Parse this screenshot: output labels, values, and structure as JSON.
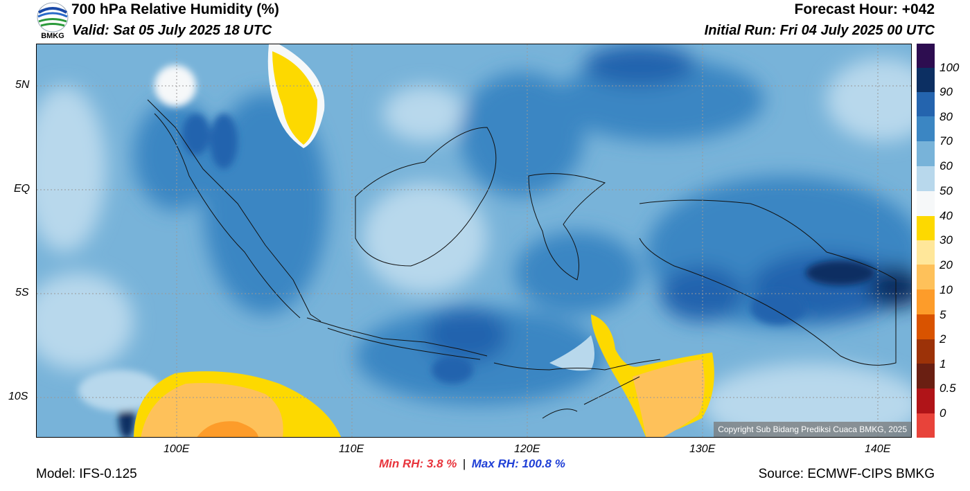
{
  "header": {
    "title": "700 hPa Relative Humidity (%)",
    "valid": "Valid: Sat 05 July 2025 18 UTC",
    "forecast_hour": "Forecast Hour: +042",
    "initial_run": "Initial Run: Fri 04 July 2025 00 UTC"
  },
  "logo": {
    "text": "BMKG"
  },
  "map": {
    "lon_range": [
      92,
      142
    ],
    "lat_range": [
      -12,
      7
    ],
    "lon_ticks": [
      {
        "value": 100,
        "label": "100E"
      },
      {
        "value": 110,
        "label": "110E"
      },
      {
        "value": 120,
        "label": "120E"
      },
      {
        "value": 130,
        "label": "130E"
      },
      {
        "value": 140,
        "label": "140E"
      }
    ],
    "lat_ticks": [
      {
        "value": 5,
        "label": "5N"
      },
      {
        "value": 0,
        "label": "EQ"
      },
      {
        "value": -5,
        "label": "5S"
      },
      {
        "value": -10,
        "label": "10S"
      }
    ],
    "copyright": "Copyright Sub Bidang Prediksi Cuaca BMKG, 2025"
  },
  "colorbar": {
    "labels": [
      "100",
      "90",
      "80",
      "70",
      "60",
      "50",
      "40",
      "30",
      "20",
      "10",
      "5",
      "2",
      "1",
      "0.5",
      "0"
    ],
    "colors": [
      "#2d0d50",
      "#0c2f62",
      "#2464ae",
      "#3b86c3",
      "#78b3d9",
      "#b8d8ec",
      "#f6f8f9",
      "#fdd900",
      "#ffe79a",
      "#fec15a",
      "#fd9c2a",
      "#d95300",
      "#9c3208",
      "#6a1f12",
      "#b01418",
      "#e8433a"
    ]
  },
  "stats": {
    "min_label": "Min RH:   3.8 %",
    "separator": "|",
    "max_label": "Max RH: 100.8 %"
  },
  "footer": {
    "model": "Model: IFS-0.125",
    "source": "Source: ECMWF-CIPS BMKG"
  }
}
